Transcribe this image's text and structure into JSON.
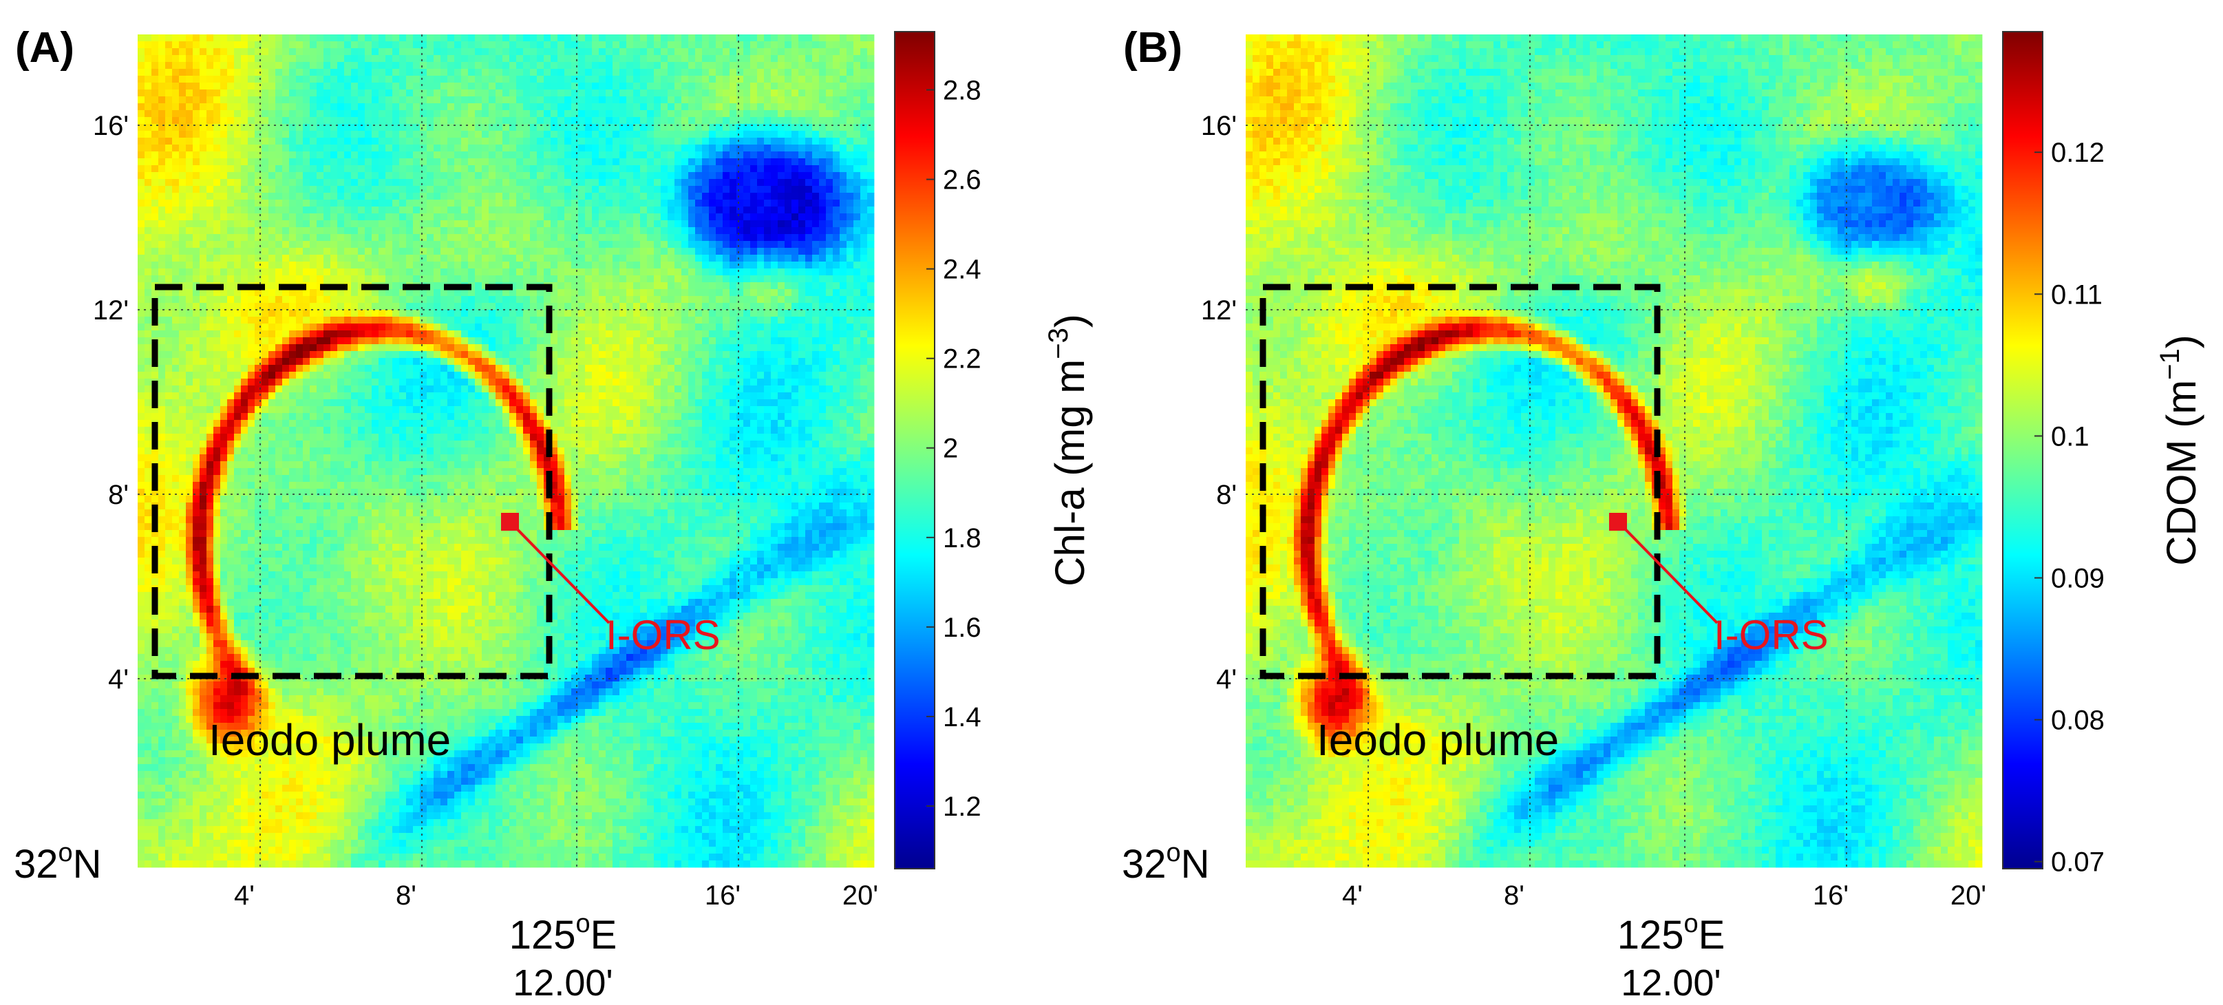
{
  "figure": {
    "panels": [
      {
        "label": "(A)",
        "colorbar_label_main": "Chl-a (mg m",
        "colorbar_label_sup": "−3",
        "colorbar_label_end": ")",
        "colorbar_ticks": [
          "1.2",
          "1.4",
          "1.6",
          "1.8",
          "2",
          "2.2",
          "2.4",
          "2.6",
          "2.8"
        ],
        "colorbar_range": [
          1.06,
          2.93
        ]
      },
      {
        "label": "(B)",
        "colorbar_label_main": "CDOM (m",
        "colorbar_label_sup": "−1",
        "colorbar_label_end": ")",
        "colorbar_ticks": [
          "0.07",
          "0.08",
          "0.09",
          "0.1",
          "0.11",
          "0.12"
        ],
        "colorbar_range": [
          0.0695,
          0.1285
        ]
      }
    ],
    "axes": {
      "x_tick_labels": [
        "4'",
        "8'",
        "125",
        "16'",
        "20'"
      ],
      "y_tick_labels": [
        "4'",
        "8'",
        "12'",
        "16'"
      ],
      "x_main_label": "125",
      "x_main_sup": "o",
      "x_main_unit": "E",
      "x_sub_label": "12.00'",
      "y_origin_label": "32",
      "y_origin_sup": "o",
      "y_origin_unit": "N"
    },
    "annotations": {
      "station_label": "I-ORS",
      "region_label": "Ieodo plume"
    },
    "colors": {
      "station": "#e8141c",
      "box": "#000000",
      "grid": "#2e3a3a"
    }
  },
  "chart_data": [
    {
      "type": "heatmap",
      "title": "(A)",
      "variable": "Chl-a",
      "unit": "mg m-3",
      "colorbar": {
        "min": 1.06,
        "max": 2.93,
        "ticks": [
          1.2,
          1.4,
          1.6,
          1.8,
          2.0,
          2.2,
          2.4,
          2.6,
          2.8
        ],
        "colormap": "jet"
      },
      "x_axis": {
        "label": "125°E 12.00'",
        "range_min": [
          0,
          20.8
        ],
        "ticks_min": [
          4,
          8,
          12,
          16,
          20
        ]
      },
      "y_axis": {
        "label": "32°N",
        "range_min": [
          0,
          18.2
        ],
        "ticks_min": [
          4,
          8,
          12,
          16
        ]
      },
      "background_level": 1.8,
      "features": [
        {
          "name": "Ieodo plume arc",
          "level": 2.6
        },
        {
          "name": "Plume core (south-west)",
          "level": 2.75
        },
        {
          "name": "Low-value patch (north-east)",
          "level": 1.15
        }
      ],
      "station": {
        "name": "I-ORS",
        "x_min": 10.8,
        "y_min": 7.3
      },
      "box": {
        "name": "Ieodo plume",
        "x_min": [
          0.5,
          12.0
        ],
        "y_min": [
          3.8,
          12.5
        ]
      }
    },
    {
      "type": "heatmap",
      "title": "(B)",
      "variable": "CDOM",
      "unit": "m-1",
      "colorbar": {
        "min": 0.0695,
        "max": 0.1285,
        "ticks": [
          0.07,
          0.08,
          0.09,
          0.1,
          0.11,
          0.12
        ],
        "colormap": "jet"
      },
      "x_axis": {
        "label": "125°E 12.00'",
        "range_min": [
          0,
          20.8
        ],
        "ticks_min": [
          4,
          8,
          12,
          16,
          20
        ]
      },
      "y_axis": {
        "label": "32°N",
        "range_min": [
          0,
          18.2
        ],
        "ticks_min": [
          4,
          8,
          12,
          16
        ]
      },
      "background_level": 0.092,
      "features": [
        {
          "name": "Ieodo plume arc",
          "level": 0.121
        },
        {
          "name": "Plume core (south-west)",
          "level": 0.125
        },
        {
          "name": "Low-value patch (north-east)",
          "level": 0.076
        }
      ],
      "station": {
        "name": "I-ORS",
        "x_min": 10.8,
        "y_min": 7.3
      },
      "box": {
        "name": "Ieodo plume",
        "x_min": [
          0.5,
          12.0
        ],
        "y_min": [
          3.8,
          12.5
        ]
      }
    }
  ]
}
